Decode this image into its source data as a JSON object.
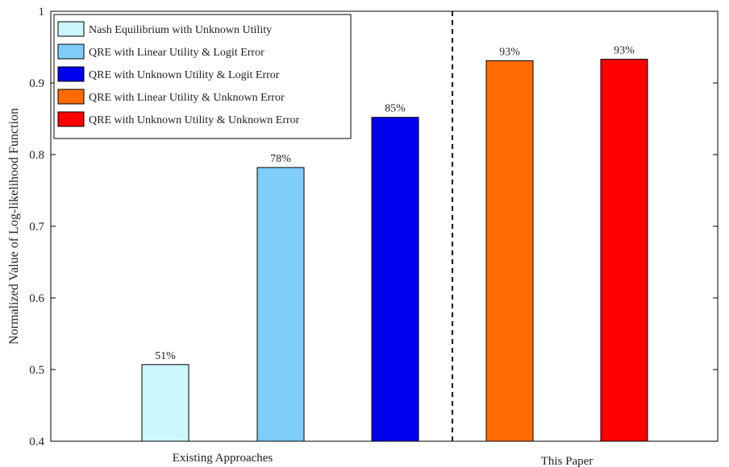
{
  "chart_data": {
    "type": "bar",
    "title": "",
    "xlabel": "",
    "ylabel": "Normalized Value of Log-likelihood Function",
    "ylim": [
      0.4,
      1.0
    ],
    "yticks": [
      "0.4",
      "0.5",
      "0.6",
      "0.7",
      "0.8",
      "0.9",
      "1"
    ],
    "grid": false,
    "legend_position": "top-left",
    "groups": [
      {
        "label": "Existing Approaches"
      },
      {
        "label": "This Paper"
      }
    ],
    "divider": "dashed vertical line between groups",
    "series": [
      {
        "name": "Nash Equilibrium with Unknown Utility",
        "group": 0,
        "value": 0.507,
        "label": "51%",
        "color": "#ccf7fc"
      },
      {
        "name": "QRE with Linear Utility & Logit Error",
        "group": 0,
        "value": 0.782,
        "label": "78%",
        "color": "#7fcdfb"
      },
      {
        "name": "QRE with Unknown Utility & Logit Error",
        "group": 0,
        "value": 0.852,
        "label": "85%",
        "color": "#0000ee"
      },
      {
        "name": "QRE with Linear Utility & Unknown Error",
        "group": 1,
        "value": 0.931,
        "label": "93%",
        "color": "#ff6b00"
      },
      {
        "name": "QRE with Unknown Utility & Unknown Error",
        "group": 1,
        "value": 0.933,
        "label": "93%",
        "color": "#ff0000"
      }
    ]
  }
}
